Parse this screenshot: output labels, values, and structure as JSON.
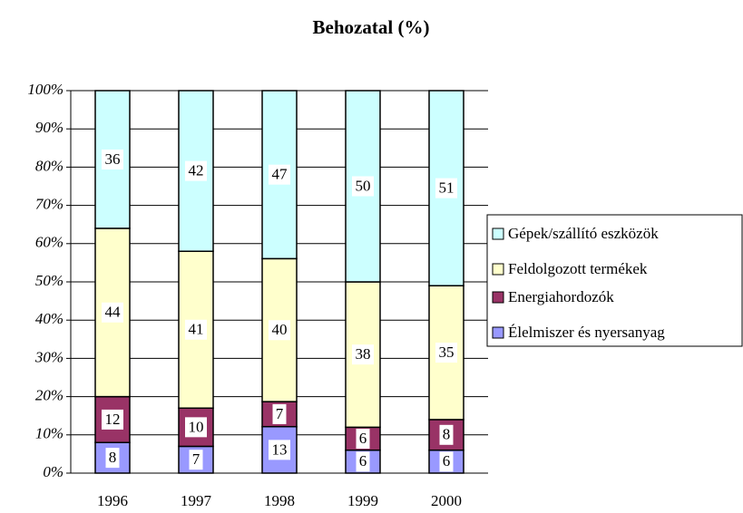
{
  "chart_data": {
    "type": "bar",
    "stacking": "percent",
    "title": "Behozatal (%)",
    "categories": [
      "1996",
      "1997",
      "1998",
      "1999",
      "2000"
    ],
    "series": [
      {
        "name": "Élelmiszer és nyersanyag",
        "color": "#9999ff",
        "values": [
          8,
          7,
          13,
          6,
          6
        ]
      },
      {
        "name": "Energiahordozók",
        "color": "#993366",
        "values": [
          12,
          10,
          7,
          6,
          8
        ]
      },
      {
        "name": "Feldolgozott termékek",
        "color": "#ffffcc",
        "values": [
          44,
          41,
          40,
          38,
          35
        ]
      },
      {
        "name": "Gépek/szállító eszközök",
        "color": "#ccffff",
        "values": [
          36,
          42,
          47,
          50,
          51
        ]
      }
    ],
    "ylim": [
      0,
      100
    ],
    "yticks": [
      {
        "value": 0,
        "label": "0%"
      },
      {
        "value": 10,
        "label": "10%"
      },
      {
        "value": 20,
        "label": "20%"
      },
      {
        "value": 30,
        "label": "30%"
      },
      {
        "value": 40,
        "label": "40%"
      },
      {
        "value": 50,
        "label": "50%"
      },
      {
        "value": 60,
        "label": "60%"
      },
      {
        "value": 70,
        "label": "70%"
      },
      {
        "value": 80,
        "label": "80%"
      },
      {
        "value": 90,
        "label": "90%"
      },
      {
        "value": 100,
        "label": "100%"
      }
    ],
    "grid": true,
    "legend": "right"
  }
}
